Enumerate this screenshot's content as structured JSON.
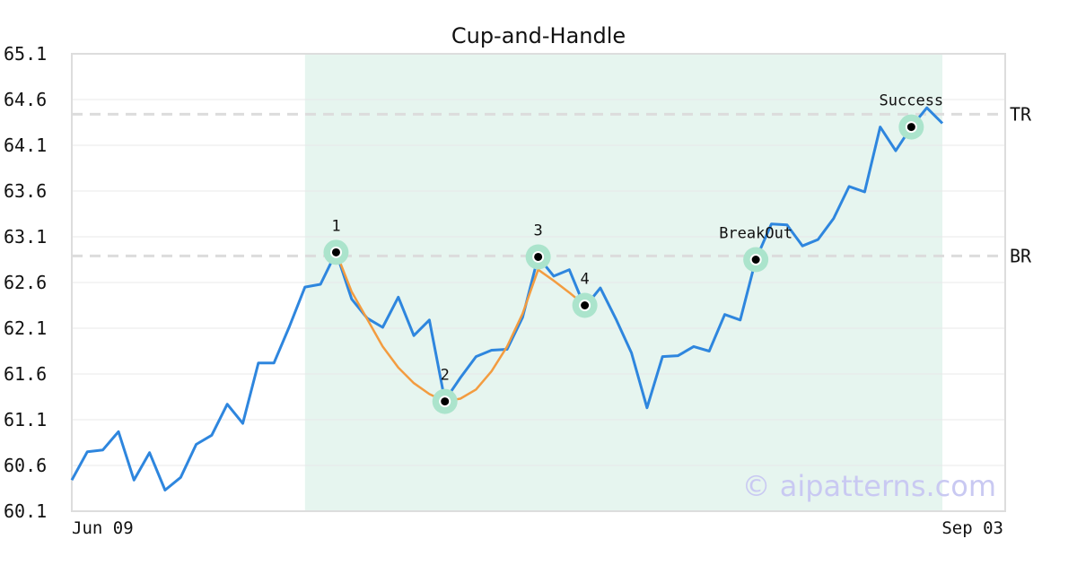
{
  "chart_data": {
    "type": "line",
    "title": "Cup-and-Handle",
    "ylim": [
      60.1,
      65.1
    ],
    "yticks": [
      "65.1",
      "64.6",
      "64.1",
      "63.6",
      "63.1",
      "62.6",
      "62.1",
      "61.6",
      "61.1",
      "60.6",
      "60.1"
    ],
    "x_labels": {
      "start": "Jun 09",
      "end": "Sep 03"
    },
    "grid": true,
    "highlight_range": [
      15,
      56
    ],
    "colors": {
      "price": "#2e86de",
      "cup": "#f39c40",
      "highlight": "#e6f5ef",
      "marker_ring": "#abe4cc",
      "level": "#dcdcdc"
    },
    "series": [
      {
        "values": [
          60.44,
          60.75,
          60.77,
          60.97,
          60.44,
          60.74,
          60.33,
          60.47,
          60.83,
          60.93,
          61.27,
          61.06,
          61.72,
          61.72,
          62.12,
          62.55,
          62.58,
          62.93,
          62.42,
          62.21,
          62.11,
          62.44,
          62.02,
          62.19,
          61.31,
          61.56,
          61.79,
          61.86,
          61.87,
          62.22,
          62.88,
          62.67,
          62.74,
          62.33,
          62.54,
          62.2,
          61.83,
          61.23,
          61.79,
          61.8,
          61.9,
          61.85,
          62.25,
          62.19,
          62.85,
          63.24,
          63.23,
          63.0,
          63.07,
          63.3,
          63.65,
          63.59,
          64.3,
          64.04,
          64.3,
          64.51,
          64.34
        ]
      }
    ],
    "cup_curve": {
      "x": [
        17,
        18,
        19,
        20,
        21,
        22,
        23,
        24,
        25,
        26,
        27,
        28,
        29,
        30,
        31,
        32,
        33
      ],
      "values": [
        62.93,
        62.5,
        62.2,
        61.9,
        61.67,
        61.5,
        61.38,
        61.3,
        61.33,
        61.43,
        61.63,
        61.9,
        62.26,
        62.74,
        62.62,
        62.49,
        62.35
      ]
    },
    "levels": [
      {
        "label": "TR",
        "value": 64.44
      },
      {
        "label": "BR",
        "value": 62.89
      }
    ],
    "annotations": [
      {
        "label": "1",
        "x": 17,
        "value": 62.93,
        "label_pos": "above"
      },
      {
        "label": "2",
        "x": 24,
        "value": 61.3,
        "label_pos": "above"
      },
      {
        "label": "3",
        "x": 30,
        "value": 62.88,
        "label_pos": "above"
      },
      {
        "label": "4",
        "x": 33,
        "value": 62.35,
        "label_pos": "above"
      },
      {
        "label": "BreakOut",
        "x": 44,
        "value": 62.85,
        "label_pos": "above"
      },
      {
        "label": "Success",
        "x": 54,
        "value": 64.3,
        "label_pos": "above"
      }
    ]
  },
  "watermark": "© aipatterns.com"
}
